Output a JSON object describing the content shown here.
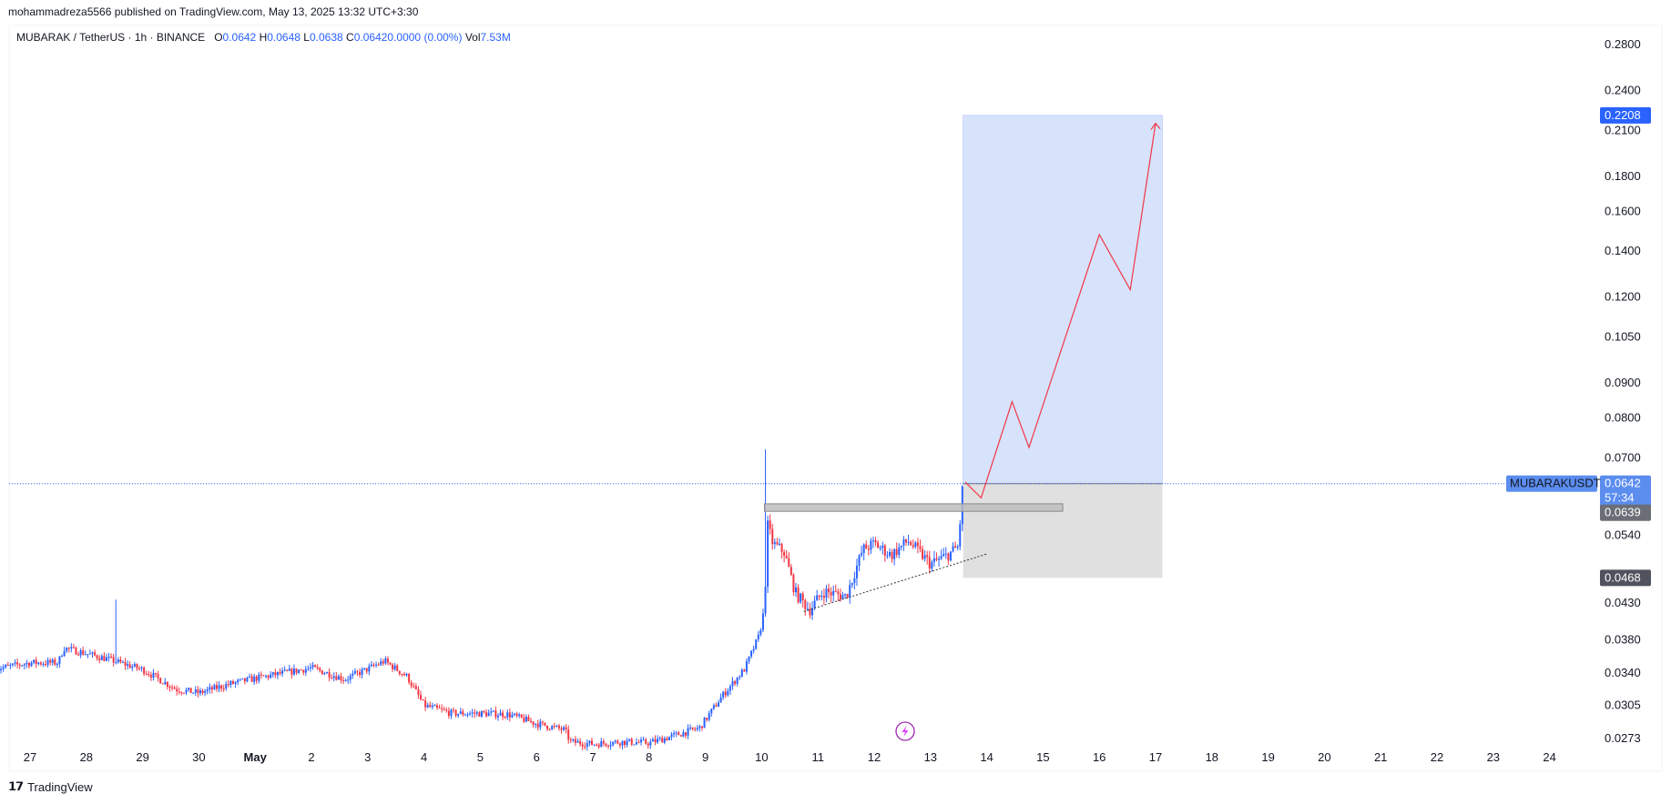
{
  "header": {
    "published_line": "mohammadreza5566 published on TradingView.com, May 13, 2025 13:32 UTC+3:30"
  },
  "legend": {
    "symbol": "MUBARAK / TetherUS · 1h · BINANCE",
    "open_label": "O",
    "open": "0.0642",
    "high_label": "H",
    "high": "0.0648",
    "low_label": "L",
    "low": "0.0638",
    "close_label": "C",
    "close": "0.0642",
    "change": "0.0000 (0.00%)",
    "vol_label": "Vol",
    "vol": "7.53M"
  },
  "footer": {
    "brand": "TradingView"
  },
  "colors": {
    "up": "#2962ff",
    "down": "#f23645",
    "target_zone": "#d5e0fb",
    "stop_zone": "#dedede",
    "current_price_line": "#2962ff",
    "path": "#f23645"
  },
  "chart_data": {
    "type": "candlestick",
    "symbol": "MUBARAKUSDT",
    "timeframe": "1h",
    "y_axis": {
      "scale": "log",
      "ticks": [
        "0.2800",
        "0.2400",
        "0.2100",
        "0.1800",
        "0.1600",
        "0.1400",
        "0.1200",
        "0.1050",
        "0.0900",
        "0.0800",
        "0.0700",
        "0.0540",
        "0.0430",
        "0.0380",
        "0.0340",
        "0.0305",
        "0.0273"
      ],
      "range": [
        0.0262,
        0.3
      ]
    },
    "x_axis": {
      "ticks": [
        "27",
        "28",
        "29",
        "30",
        "May",
        "2",
        "3",
        "4",
        "5",
        "6",
        "7",
        "8",
        "9",
        "10",
        "11",
        "12",
        "13",
        "14",
        "15",
        "16",
        "17",
        "18",
        "19",
        "20",
        "21",
        "22",
        "23",
        "24"
      ]
    },
    "price_path_anchors": [
      {
        "day": -0.6,
        "price": 0.0345
      },
      {
        "day": 0.0,
        "price": 0.0352
      },
      {
        "day": 0.5,
        "price": 0.0352
      },
      {
        "day": 0.6,
        "price": 0.037
      },
      {
        "day": 1.0,
        "price": 0.0363
      },
      {
        "day": 1.4,
        "price": 0.0356
      },
      {
        "day": 2.0,
        "price": 0.0344
      },
      {
        "day": 2.6,
        "price": 0.0322
      },
      {
        "day": 3.0,
        "price": 0.0318
      },
      {
        "day": 3.5,
        "price": 0.0327
      },
      {
        "day": 4.0,
        "price": 0.0334
      },
      {
        "day": 5.0,
        "price": 0.0346
      },
      {
        "day": 5.6,
        "price": 0.0333
      },
      {
        "day": 6.3,
        "price": 0.0354
      },
      {
        "day": 6.7,
        "price": 0.0336
      },
      {
        "day": 7.0,
        "price": 0.0305
      },
      {
        "day": 7.5,
        "price": 0.0297
      },
      {
        "day": 8.0,
        "price": 0.0297
      },
      {
        "day": 8.5,
        "price": 0.0296
      },
      {
        "day": 9.0,
        "price": 0.0287
      },
      {
        "day": 9.5,
        "price": 0.0281
      },
      {
        "day": 9.6,
        "price": 0.027
      },
      {
        "day": 10.0,
        "price": 0.0268
      },
      {
        "day": 10.5,
        "price": 0.027
      },
      {
        "day": 11.0,
        "price": 0.0269
      },
      {
        "day": 11.4,
        "price": 0.0275
      },
      {
        "day": 11.9,
        "price": 0.0283
      },
      {
        "day": 12.3,
        "price": 0.0315
      },
      {
        "day": 12.7,
        "price": 0.0345
      },
      {
        "day": 12.95,
        "price": 0.0385
      },
      {
        "day": 13.05,
        "price": 0.042
      },
      {
        "day": 13.1,
        "price": 0.056
      },
      {
        "day": 13.2,
        "price": 0.0525
      },
      {
        "day": 13.4,
        "price": 0.051
      },
      {
        "day": 13.6,
        "price": 0.0445
      },
      {
        "day": 13.85,
        "price": 0.042
      },
      {
        "day": 14.1,
        "price": 0.0447
      },
      {
        "day": 14.5,
        "price": 0.044
      },
      {
        "day": 14.8,
        "price": 0.0515
      },
      {
        "day": 15.0,
        "price": 0.0525
      },
      {
        "day": 15.3,
        "price": 0.0505
      },
      {
        "day": 15.6,
        "price": 0.053
      },
      {
        "day": 15.9,
        "price": 0.05
      },
      {
        "day": 16.0,
        "price": 0.049
      },
      {
        "day": 16.3,
        "price": 0.0505
      },
      {
        "day": 16.5,
        "price": 0.052
      },
      {
        "day": 16.55,
        "price": 0.061
      },
      {
        "day": 16.58,
        "price": 0.0642
      }
    ],
    "notable_wicks": [
      {
        "day": 13.1,
        "high": 0.072
      },
      {
        "day": 1.55,
        "high": 0.0435
      }
    ],
    "last_price": "0.0642",
    "countdown": "57:34",
    "resistance_price": "0.0639",
    "price_labels": {
      "target": "0.2208",
      "stop": "0.0468"
    },
    "long_position": {
      "entry": 0.0642,
      "target": 0.2208,
      "stop": 0.0468,
      "day_start": 16.58,
      "day_end": 20.12
    },
    "resistance_zone": {
      "top": 0.06,
      "bottom": 0.0585,
      "day_start": 13.05,
      "day_end": 18.35
    },
    "support_trendline": [
      {
        "day": 13.75,
        "price": 0.0418
      },
      {
        "day": 17.0,
        "price": 0.0507
      }
    ],
    "projected_path": [
      {
        "day": 16.62,
        "price": 0.0645
      },
      {
        "day": 16.9,
        "price": 0.0612
      },
      {
        "day": 17.45,
        "price": 0.0845
      },
      {
        "day": 17.75,
        "price": 0.0725
      },
      {
        "day": 19.0,
        "price": 0.148
      },
      {
        "day": 19.55,
        "price": 0.123
      },
      {
        "day": 20.0,
        "price": 0.215
      }
    ]
  }
}
